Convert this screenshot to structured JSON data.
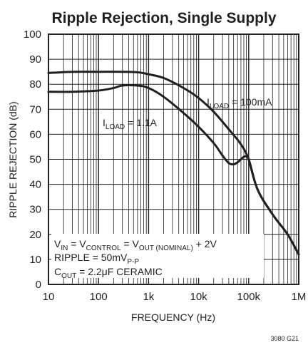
{
  "chart_data": {
    "type": "line",
    "title": "Ripple Rejection, Single Supply",
    "xlabel": "FREQUENCY (Hz)",
    "ylabel": "RIPPLE REJECTION (dB)",
    "x_scale": "log",
    "xlim": [
      10,
      1000000
    ],
    "ylim": [
      0,
      100
    ],
    "grid": true,
    "x_tick_labels": [
      "10",
      "100",
      "1k",
      "10k",
      "100k",
      "1M"
    ],
    "x_ticks": [
      10,
      100,
      1000,
      10000,
      100000,
      1000000
    ],
    "y_ticks": [
      0,
      10,
      20,
      30,
      40,
      50,
      60,
      70,
      80,
      90,
      100
    ],
    "series": [
      {
        "name_main": "I",
        "name_sub": "LOAD",
        "name_tail": " = 100mA",
        "x": [
          10,
          30,
          100,
          300,
          600,
          1000,
          2000,
          5000,
          10000,
          20000,
          40000,
          70000,
          100000,
          150000,
          300000,
          600000,
          1000000
        ],
        "y": [
          84.5,
          85,
          85,
          85,
          84.8,
          84,
          82.5,
          78.5,
          74.5,
          69,
          62,
          56,
          50,
          38,
          28,
          20,
          12
        ]
      },
      {
        "name_main": "I",
        "name_sub": "LOAD",
        "name_tail": " = 1.1A",
        "x": [
          10,
          30,
          100,
          200,
          300,
          600,
          1000,
          2000,
          5000,
          10000,
          20000,
          30000,
          40000,
          50000,
          60000,
          70000,
          80000,
          90000,
          100000,
          150000,
          300000,
          600000,
          1000000
        ],
        "y": [
          77,
          77,
          77.5,
          78.5,
          79.5,
          79.5,
          78.5,
          75,
          68.5,
          63,
          56.5,
          51.5,
          48.5,
          48,
          48.8,
          50,
          51,
          51.2,
          50,
          38,
          28,
          20,
          12
        ]
      }
    ],
    "annotation": {
      "l1": {
        "p1": "V",
        "s1": "IN",
        "p2": " = V",
        "s2": "CONTROL",
        "p3": " = V",
        "s3": "OUT (NOMINAL)",
        "p4": " + 2V"
      },
      "l2": {
        "p1": "RIPPLE = 50mV",
        "s1": "P-P"
      },
      "l3": {
        "p1": "C",
        "s1": "OUT",
        "p2": " = 2.2μF CERAMIC"
      }
    },
    "figure_code": "3080 G21",
    "line_color": "#231f20"
  }
}
